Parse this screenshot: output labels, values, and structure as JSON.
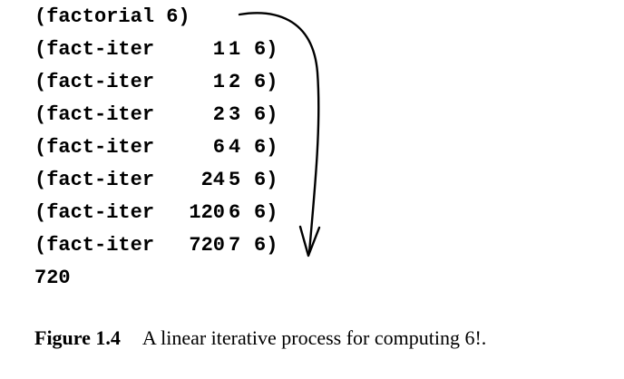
{
  "code": {
    "first_line": "(factorial 6)",
    "iter_lines": [
      {
        "fn": "(fact-iter",
        "product": "1",
        "counter": "1",
        "max": "6)"
      },
      {
        "fn": "(fact-iter",
        "product": "1",
        "counter": "2",
        "max": "6)"
      },
      {
        "fn": "(fact-iter",
        "product": "2",
        "counter": "3",
        "max": "6)"
      },
      {
        "fn": "(fact-iter",
        "product": "6",
        "counter": "4",
        "max": "6)"
      },
      {
        "fn": "(fact-iter",
        "product": "24",
        "counter": "5",
        "max": "6)"
      },
      {
        "fn": "(fact-iter",
        "product": "120",
        "counter": "6",
        "max": "6)"
      },
      {
        "fn": "(fact-iter",
        "product": "720",
        "counter": "7",
        "max": "6)"
      }
    ],
    "result": "720"
  },
  "caption": {
    "label": "Figure 1.4",
    "text": "A linear iterative process for computing 6!."
  }
}
